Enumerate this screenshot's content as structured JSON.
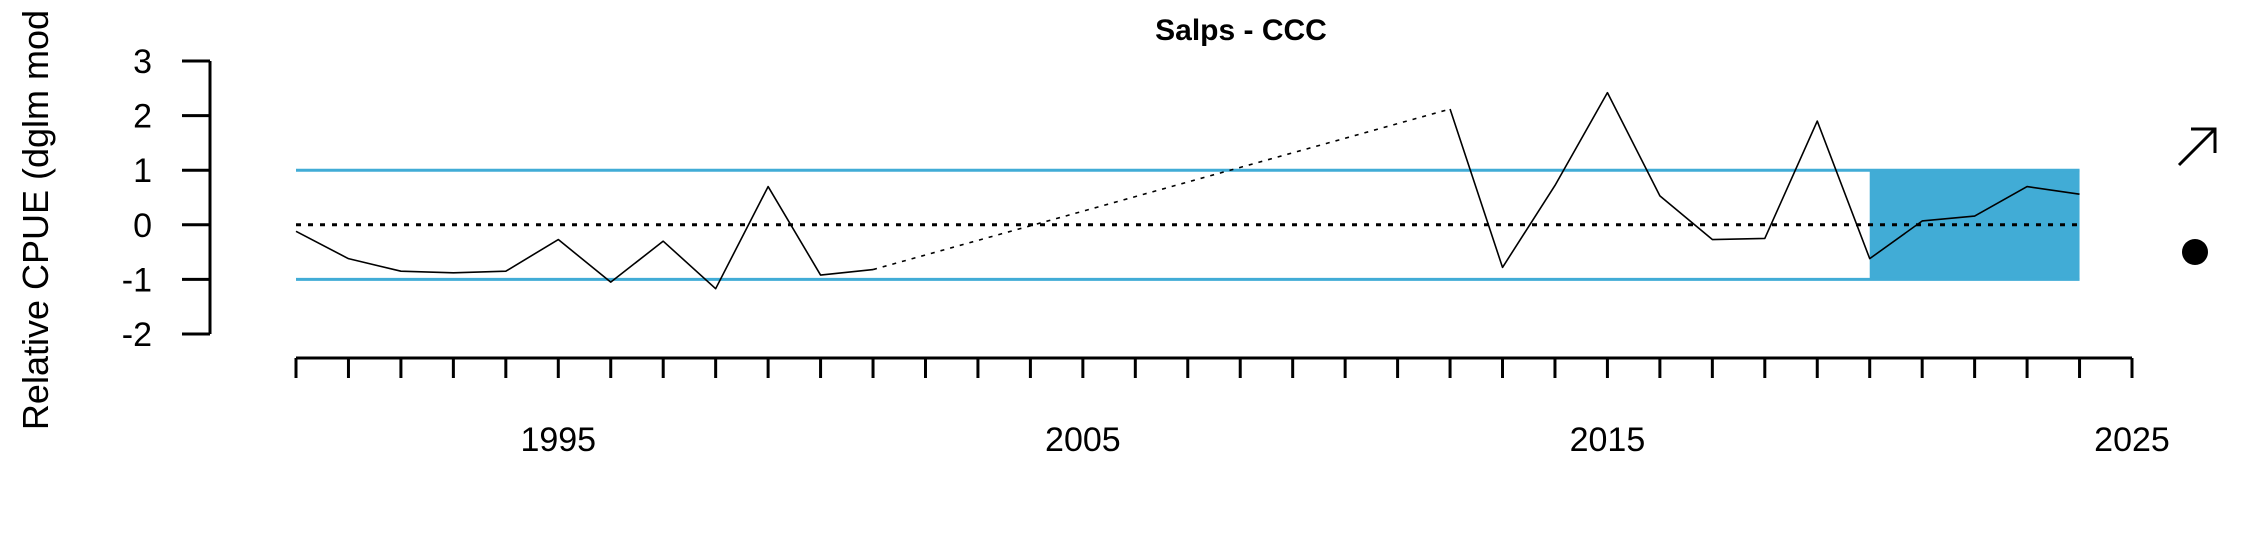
{
  "chart_data": {
    "type": "line",
    "title": "Salps - CCC",
    "ylabel": "Relative CPUE (dglm mod",
    "xlim": [
      1990,
      2025
    ],
    "ylim": [
      -2,
      3
    ],
    "x_ticks": [
      1995,
      2005,
      2015,
      2025
    ],
    "y_ticks": [
      3,
      2,
      1,
      0,
      -1,
      -2
    ],
    "reference_lines": {
      "upper": 1,
      "mean": 0,
      "lower": -1
    },
    "highlight_range": {
      "x": [
        2020,
        2024
      ],
      "y": [
        -1,
        1
      ]
    },
    "series": [
      {
        "x": [
          1990,
          1991,
          1992,
          1993,
          1994,
          1995,
          1996,
          1997,
          1998,
          1999,
          2000,
          2001
        ],
        "y": [
          -0.12,
          -0.62,
          -0.85,
          -0.88,
          -0.85,
          -0.27,
          -1.05,
          -0.3,
          -1.17,
          0.7,
          -0.92,
          -0.82
        ]
      },
      {
        "x": [
          2012,
          2013,
          2014,
          2015,
          2016,
          2017,
          2018,
          2019,
          2020,
          2021,
          2022,
          2023,
          2024
        ],
        "y": [
          2.12,
          -0.78,
          0.72,
          2.42,
          0.53,
          -0.27,
          -0.25,
          1.9,
          -0.62,
          0.07,
          0.16,
          0.7,
          0.56
        ]
      }
    ],
    "gap_segment": {
      "x": [
        2001,
        2012
      ],
      "y": [
        -0.82,
        2.12
      ]
    },
    "colors": {
      "band": "#41acd6",
      "line": "#000000"
    },
    "trend_icon": "arrow-up-right-icon",
    "status_icon": "filled-circle-icon"
  }
}
